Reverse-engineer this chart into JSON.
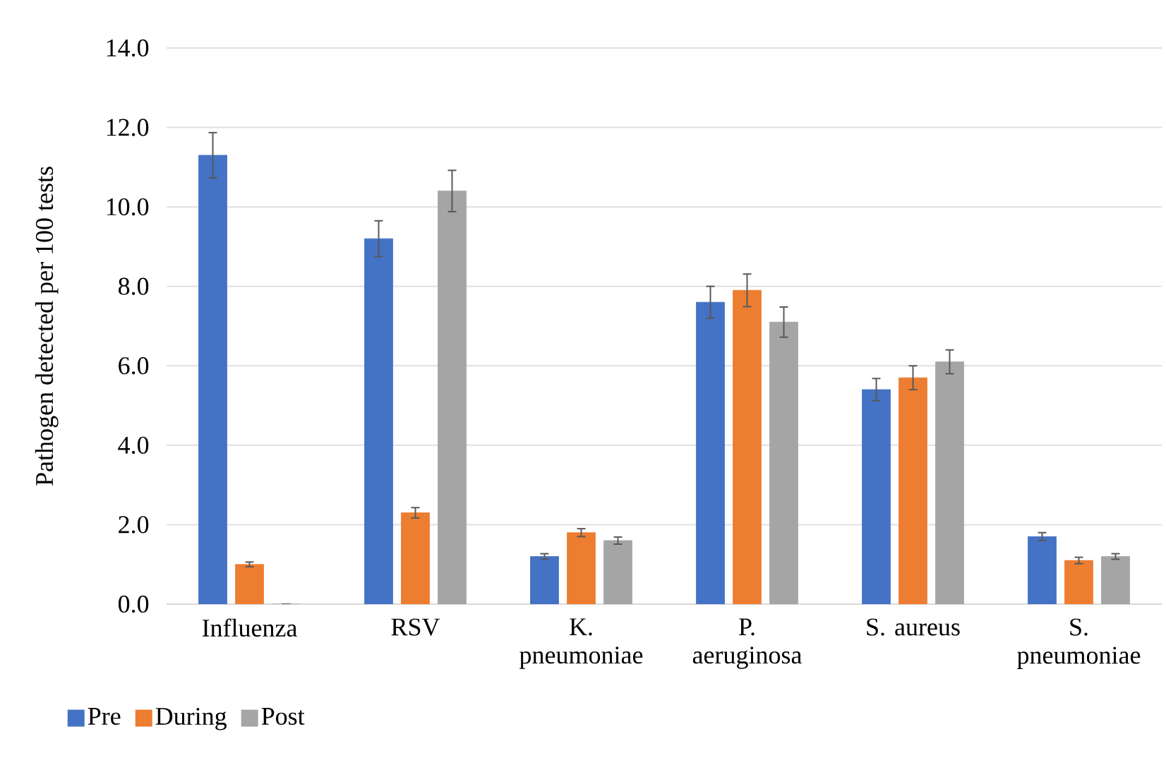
{
  "chart_data": {
    "type": "bar",
    "ylabel": "Pathogen detected per 100 tests",
    "categories": [
      "Influenza",
      "RSV",
      "K. pneumoniae",
      "P. aeruginosa",
      "S. aureus",
      "S. pneumoniae"
    ],
    "series": [
      {
        "name": "Pre",
        "color": "#4472c4",
        "values": [
          11.3,
          9.2,
          1.2,
          7.6,
          5.4,
          1.7
        ],
        "errors": [
          0.57,
          0.45,
          0.07,
          0.4,
          0.28,
          0.1
        ]
      },
      {
        "name": "During",
        "color": "#ed7d31",
        "values": [
          1.0,
          2.3,
          1.8,
          7.9,
          5.7,
          1.1
        ],
        "errors": [
          0.06,
          0.13,
          0.1,
          0.41,
          0.3,
          0.08
        ]
      },
      {
        "name": "Post",
        "color": "#a5a5a5",
        "values": [
          0.0,
          10.4,
          1.6,
          7.1,
          6.1,
          1.2
        ],
        "errors": [
          0.0,
          0.52,
          0.09,
          0.38,
          0.3,
          0.07
        ]
      }
    ],
    "ylim": [
      0,
      14
    ],
    "yticks": [
      {
        "value": 0,
        "label": "0.0"
      },
      {
        "value": 2,
        "label": "2.0"
      },
      {
        "value": 4,
        "label": "4.0"
      },
      {
        "value": 6,
        "label": "6.0"
      },
      {
        "value": 8,
        "label": "8.0"
      },
      {
        "value": 10,
        "label": "10.0"
      },
      {
        "value": 12,
        "label": "12.0"
      },
      {
        "value": 14,
        "label": "14.0"
      }
    ],
    "grid": "y",
    "legend": "bottom left"
  }
}
